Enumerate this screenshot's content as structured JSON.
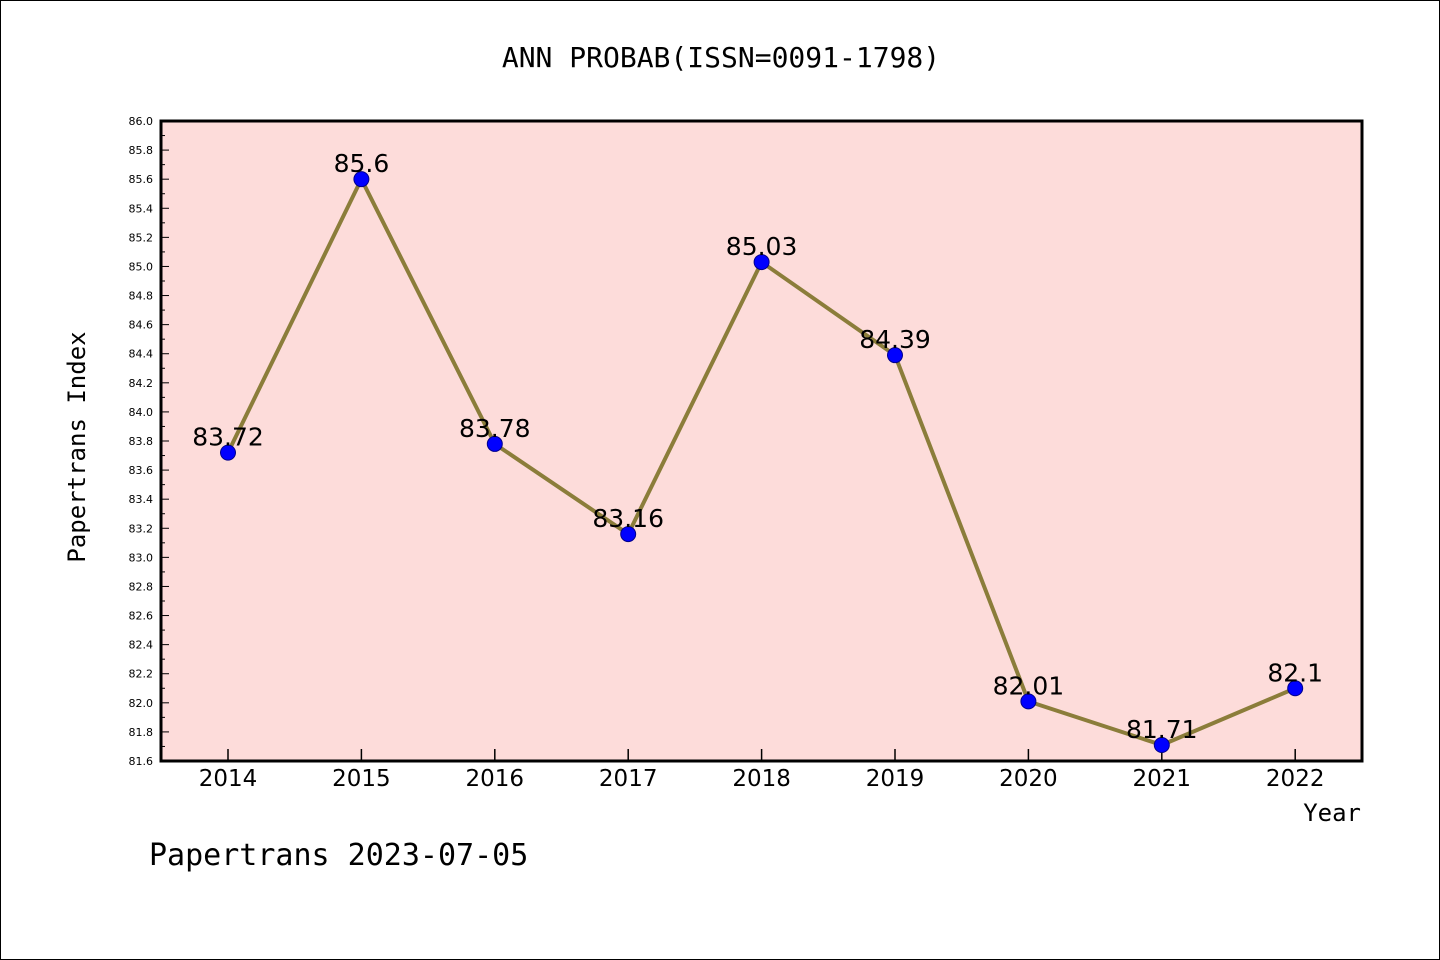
{
  "chart_data": {
    "type": "line",
    "title": "ANN PROBAB(ISSN=0091-1798)",
    "xlabel": "Year",
    "ylabel": "Papertrans Index",
    "categories": [
      "2014",
      "2015",
      "2016",
      "2017",
      "2018",
      "2019",
      "2020",
      "2021",
      "2022"
    ],
    "series": [
      {
        "values": [
          83.72,
          85.6,
          83.78,
          83.16,
          85.03,
          84.39,
          82.01,
          81.71,
          82.1
        ],
        "labels": [
          "83.72",
          "85.6",
          "83.78",
          "83.16",
          "85.03",
          "84.39",
          "82.01",
          "81.71",
          "82.1"
        ]
      }
    ],
    "ylim": [
      81.6,
      86.0
    ],
    "yticks": [
      "81.6",
      "81.8",
      "82.0",
      "82.2",
      "82.4",
      "82.6",
      "82.8",
      "83.0",
      "83.2",
      "83.4",
      "83.6",
      "83.8",
      "84.0",
      "84.2",
      "84.4",
      "84.6",
      "84.8",
      "85.0",
      "85.2",
      "85.4",
      "85.6",
      "85.8",
      "86.0"
    ],
    "grid": false,
    "colors": {
      "line": "#8b7d3a",
      "marker": "#0000ff",
      "plot_background": "#fddcda",
      "frame": "#000000"
    }
  },
  "footer": {
    "text": "Papertrans 2023-07-05"
  }
}
